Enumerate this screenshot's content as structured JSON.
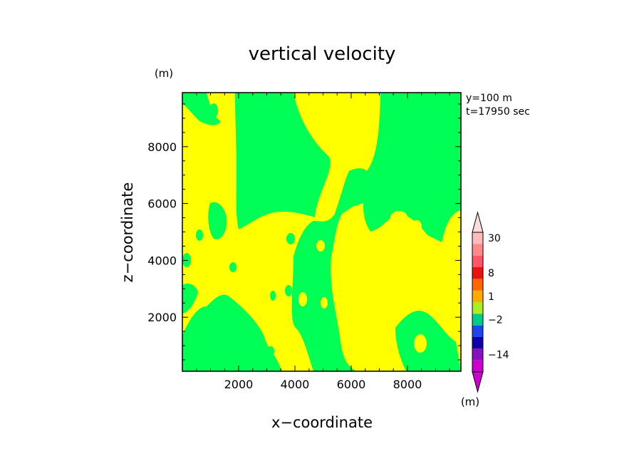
{
  "chart_data": {
    "type": "heatmap",
    "title": "vertical velocity",
    "xlabel": "x−coordinate",
    "ylabel": "z−coordinate",
    "y_unit": "(m)",
    "info_lines": [
      "y=100 m",
      "t=17950 sec"
    ],
    "xlim": [
      0,
      9900
    ],
    "ylim": [
      100,
      9900
    ],
    "x_ticks": [
      2000,
      4000,
      6000,
      8000
    ],
    "y_ticks": [
      2000,
      4000,
      6000,
      8000
    ],
    "colorbar": {
      "unit": "(m)",
      "tick_labels": [
        {
          "label": "30",
          "band": 11
        },
        {
          "label": "8",
          "band": 8
        },
        {
          "label": "1",
          "band": 6
        },
        {
          "label": "−2",
          "band": 4
        },
        {
          "label": "−14",
          "band": 1
        }
      ],
      "band_colors": [
        "#cc00cc",
        "#8811bb",
        "#1100aa",
        "#2244ee",
        "#00cc88",
        "#aaee22",
        "#ffaa00",
        "#ff6600",
        "#ee1111",
        "#ff5566",
        "#ff8888",
        "#ffbbbb"
      ],
      "under_color": "#cc00cc",
      "over_color": "#ffdddd"
    },
    "field_colors": {
      "positive": "#ffff00",
      "negative": "#00ff55"
    }
  }
}
